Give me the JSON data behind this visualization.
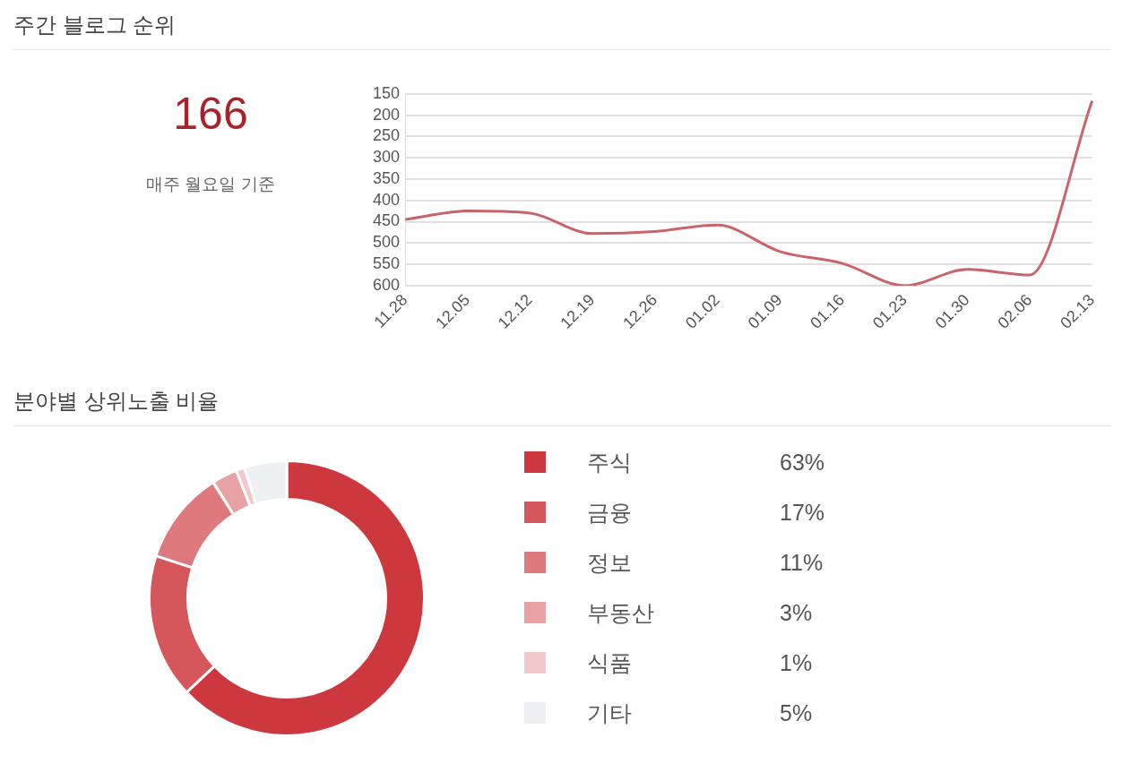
{
  "chart_data": [
    {
      "type": "other",
      "title": "주간 블로그 순위",
      "annotations": [
        "166",
        "매주 월요일 기준"
      ]
    },
    {
      "type": "line",
      "categories": [
        "11.28",
        "12.05",
        "12.12",
        "12.19",
        "12.26",
        "01.02",
        "01.09",
        "01.16",
        "01.23",
        "01.30",
        "02.06",
        "02.13"
      ],
      "series": [
        {
          "color": "#c8646a",
          "values": [
            445,
            425,
            430,
            478,
            473,
            458,
            520,
            548,
            600,
            562,
            575,
            166
          ]
        }
      ],
      "ylim": [
        600,
        150
      ],
      "yticks": [
        150,
        200,
        250,
        300,
        350,
        400,
        450,
        500,
        550,
        600
      ],
      "grid": "y",
      "marker": "none",
      "legend": false
    },
    {
      "type": "donut",
      "title": "분야별 상위노출 비율",
      "categories": [
        "주식",
        "금융",
        "정보",
        "부동산",
        "식품",
        "기타"
      ],
      "values": [
        63,
        17,
        11,
        3,
        1,
        5
      ],
      "value_labels": [
        "63%",
        "17%",
        "11%",
        "3%",
        "1%",
        "5%"
      ],
      "colors": [
        "#cc383d",
        "#d5575c",
        "#de797d",
        "#e8a1a4",
        "#f3c8cb",
        "#eeeff2"
      ],
      "legend": "right"
    }
  ]
}
